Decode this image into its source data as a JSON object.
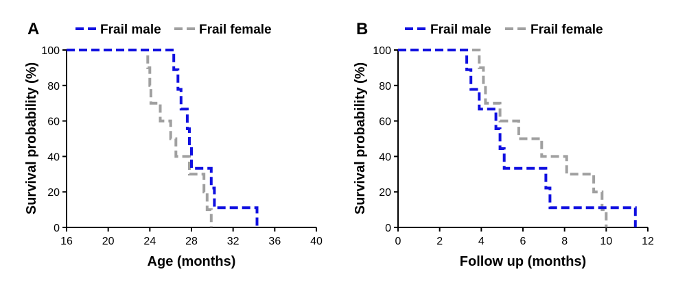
{
  "chart_data": [
    {
      "type": "line",
      "panel_label": "A",
      "xlabel": "Age (months)",
      "ylabel": "Survival probability (%)",
      "xlim": [
        16,
        40
      ],
      "ylim": [
        0,
        100
      ],
      "xticks": [
        16,
        20,
        24,
        28,
        32,
        36,
        40
      ],
      "yticks": [
        0,
        20,
        40,
        60,
        80,
        100
      ],
      "legend": "top",
      "series": [
        {
          "name": "Frail male",
          "color": "#1010e0",
          "steps": [
            [
              16,
              100
            ],
            [
              26.3,
              100
            ],
            [
              26.3,
              88.9
            ],
            [
              26.7,
              88.9
            ],
            [
              26.7,
              77.8
            ],
            [
              27.0,
              77.8
            ],
            [
              27.0,
              66.7
            ],
            [
              27.6,
              66.7
            ],
            [
              27.6,
              55.6
            ],
            [
              27.8,
              55.6
            ],
            [
              27.8,
              44.4
            ],
            [
              28.0,
              44.4
            ],
            [
              28.0,
              33.3
            ],
            [
              29.9,
              33.3
            ],
            [
              29.9,
              22.2
            ],
            [
              30.2,
              22.2
            ],
            [
              30.2,
              11.1
            ],
            [
              34.3,
              11.1
            ],
            [
              34.3,
              0
            ]
          ]
        },
        {
          "name": "Frail female",
          "color": "#a0a0a0",
          "steps": [
            [
              16,
              100
            ],
            [
              23.8,
              100
            ],
            [
              23.8,
              90
            ],
            [
              24.0,
              90
            ],
            [
              24.0,
              80
            ],
            [
              24.1,
              80
            ],
            [
              24.1,
              70
            ],
            [
              25.0,
              70
            ],
            [
              25.0,
              60
            ],
            [
              26.0,
              60
            ],
            [
              26.0,
              50
            ],
            [
              26.5,
              50
            ],
            [
              26.5,
              40
            ],
            [
              27.8,
              40
            ],
            [
              27.8,
              30
            ],
            [
              29.2,
              30
            ],
            [
              29.2,
              20
            ],
            [
              29.5,
              20
            ],
            [
              29.5,
              10
            ],
            [
              29.9,
              10
            ],
            [
              29.9,
              0
            ]
          ]
        }
      ]
    },
    {
      "type": "line",
      "panel_label": "B",
      "xlabel": "Follow up (months)",
      "ylabel": "Survival probability (%)",
      "xlim": [
        0,
        12
      ],
      "ylim": [
        0,
        100
      ],
      "xticks": [
        0,
        2,
        4,
        6,
        8,
        10,
        12
      ],
      "yticks": [
        0,
        20,
        40,
        60,
        80,
        100
      ],
      "legend": "top",
      "series": [
        {
          "name": "Frail male",
          "color": "#1010e0",
          "steps": [
            [
              0,
              100
            ],
            [
              3.3,
              100
            ],
            [
              3.3,
              88.9
            ],
            [
              3.5,
              88.9
            ],
            [
              3.5,
              77.8
            ],
            [
              3.9,
              77.8
            ],
            [
              3.9,
              66.7
            ],
            [
              4.7,
              66.7
            ],
            [
              4.7,
              55.6
            ],
            [
              4.9,
              55.6
            ],
            [
              4.9,
              44.4
            ],
            [
              5.1,
              44.4
            ],
            [
              5.1,
              33.3
            ],
            [
              7.1,
              33.3
            ],
            [
              7.1,
              22.2
            ],
            [
              7.3,
              22.2
            ],
            [
              7.3,
              11.1
            ],
            [
              11.4,
              11.1
            ],
            [
              11.4,
              0
            ]
          ]
        },
        {
          "name": "Frail female",
          "color": "#a0a0a0",
          "steps": [
            [
              0,
              100
            ],
            [
              3.4,
              100
            ],
            [
              3.4,
              100
            ],
            [
              3.9,
              100
            ],
            [
              3.9,
              90
            ],
            [
              4.1,
              90
            ],
            [
              4.1,
              80
            ],
            [
              4.2,
              80
            ],
            [
              4.2,
              70
            ],
            [
              4.9,
              70
            ],
            [
              4.9,
              60
            ],
            [
              5.8,
              60
            ],
            [
              5.8,
              50
            ],
            [
              6.9,
              50
            ],
            [
              6.9,
              40
            ],
            [
              8.1,
              40
            ],
            [
              8.1,
              30
            ],
            [
              9.4,
              30
            ],
            [
              9.4,
              20
            ],
            [
              9.8,
              20
            ],
            [
              9.8,
              10
            ],
            [
              10.0,
              10
            ],
            [
              10.0,
              0
            ]
          ]
        }
      ]
    }
  ]
}
